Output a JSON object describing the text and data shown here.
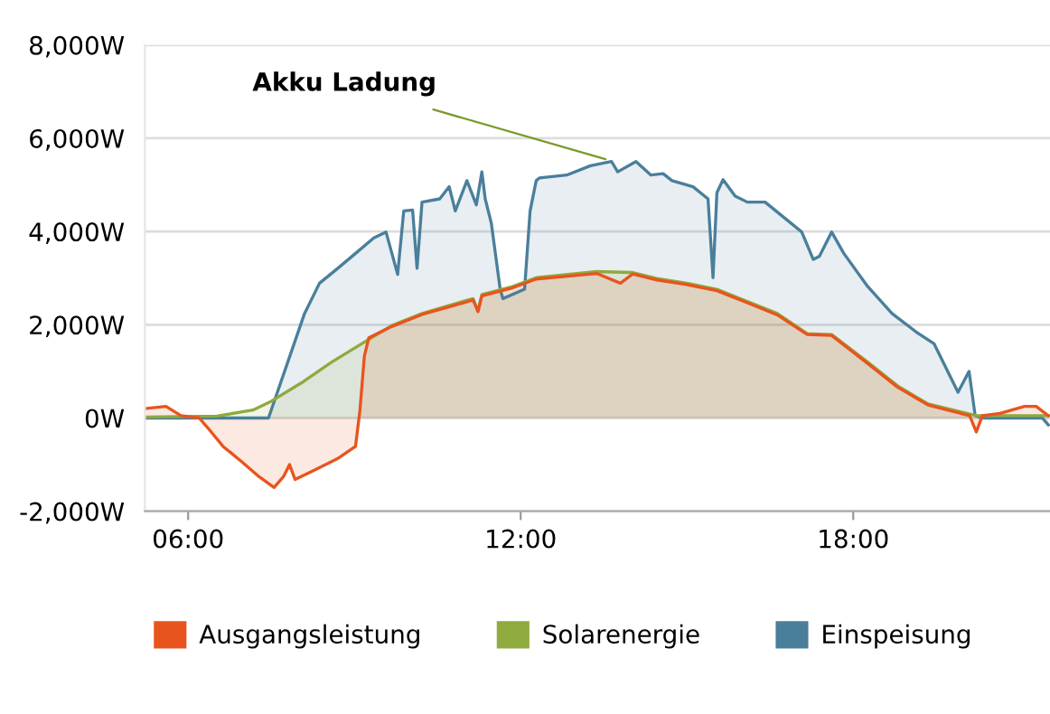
{
  "chart_data": {
    "type": "area",
    "xlim": [
      5.22,
      21.55
    ],
    "ylim": [
      -2000,
      8000
    ],
    "xticks": [
      {
        "value": 6,
        "label": "06:00"
      },
      {
        "value": 12,
        "label": "12:00"
      },
      {
        "value": 18,
        "label": "18:00"
      }
    ],
    "yticks": [
      {
        "value": -2000,
        "label": "-2,000W"
      },
      {
        "value": 0,
        "label": "0W"
      },
      {
        "value": 2000,
        "label": "2,000W"
      },
      {
        "value": 4000,
        "label": "4,000W"
      },
      {
        "value": 6000,
        "label": "6,000W"
      },
      {
        "value": 8000,
        "label": "8,000W"
      }
    ],
    "grid": "y",
    "legend": "bottom",
    "annotations": [
      {
        "text": "Akku Ladung",
        "x": 13.53,
        "y": 5550
      }
    ],
    "series": [
      {
        "name": "Einspeisung",
        "color": "#4a7f9b",
        "x": [
          5.22,
          7.39,
          7.45,
          8.1,
          8.37,
          8.7,
          9.02,
          9.35,
          9.57,
          9.78,
          9.89,
          10.05,
          10.13,
          10.22,
          10.54,
          10.71,
          10.82,
          11.03,
          11.2,
          11.3,
          11.36,
          11.47,
          11.63,
          11.68,
          12.07,
          12.17,
          12.28,
          12.34,
          12.83,
          13.26,
          13.64,
          13.75,
          14.08,
          14.35,
          14.57,
          14.73,
          15.11,
          15.38,
          15.47,
          15.54,
          15.65,
          15.87,
          16.09,
          16.41,
          16.74,
          17.07,
          17.28,
          17.39,
          17.61,
          17.83,
          18.26,
          18.7,
          19.13,
          19.46,
          19.89,
          20.09,
          20.2,
          20.33,
          21.41,
          21.52
        ],
        "values": [
          0,
          0,
          0,
          2240,
          2890,
          3210,
          3530,
          3860,
          3990,
          3080,
          4440,
          4460,
          3210,
          4630,
          4700,
          4960,
          4440,
          5090,
          4570,
          5280,
          4700,
          4180,
          2760,
          2560,
          2760,
          4440,
          5090,
          5150,
          5210,
          5410,
          5500,
          5280,
          5500,
          5210,
          5240,
          5090,
          4960,
          4700,
          3010,
          4830,
          5110,
          4760,
          4630,
          4630,
          4310,
          3990,
          3400,
          3470,
          3990,
          3530,
          2820,
          2240,
          1850,
          1590,
          550,
          1000,
          50,
          0,
          0,
          -150
        ]
      },
      {
        "name": "Solarenergie",
        "color": "#8faa3d",
        "x": [
          5.22,
          6.52,
          7.17,
          7.5,
          8.04,
          8.59,
          9.13,
          9.67,
          10.22,
          10.76,
          11.14,
          11.23,
          11.3,
          11.85,
          12.28,
          13.37,
          14.02,
          14.46,
          15.0,
          15.54,
          16.09,
          16.63,
          17.17,
          17.61,
          18.26,
          18.8,
          19.35,
          20.22,
          21.52
        ],
        "values": [
          20,
          40,
          170,
          360,
          750,
          1200,
          1590,
          1980,
          2240,
          2430,
          2560,
          2300,
          2650,
          2820,
          3010,
          3140,
          3120,
          2990,
          2890,
          2760,
          2500,
          2240,
          1810,
          1790,
          1200,
          690,
          300,
          50,
          50
        ]
      },
      {
        "name": "Ausgangsleistung",
        "color": "#e8541e",
        "x": [
          5.22,
          5.6,
          5.87,
          6.2,
          6.36,
          6.63,
          6.96,
          7.28,
          7.55,
          7.72,
          7.83,
          7.93,
          8.26,
          8.7,
          9.02,
          9.1,
          9.18,
          9.26,
          9.67,
          10.22,
          10.76,
          11.14,
          11.23,
          11.3,
          11.85,
          12.28,
          13.37,
          13.8,
          14.02,
          14.46,
          15.0,
          15.54,
          16.09,
          16.63,
          17.17,
          17.61,
          18.26,
          18.8,
          19.35,
          20.1,
          20.22,
          20.33,
          20.65,
          21.09,
          21.3,
          21.52
        ],
        "values": [
          200,
          250,
          50,
          0,
          -220,
          -610,
          -930,
          -1260,
          -1490,
          -1260,
          -1000,
          -1320,
          -1130,
          -870,
          -610,
          170,
          1330,
          1720,
          1960,
          2220,
          2400,
          2530,
          2280,
          2620,
          2790,
          2980,
          3100,
          2890,
          3090,
          2960,
          2860,
          2730,
          2470,
          2210,
          1790,
          1770,
          1170,
          660,
          280,
          50,
          -300,
          50,
          100,
          250,
          250,
          50
        ]
      }
    ]
  }
}
